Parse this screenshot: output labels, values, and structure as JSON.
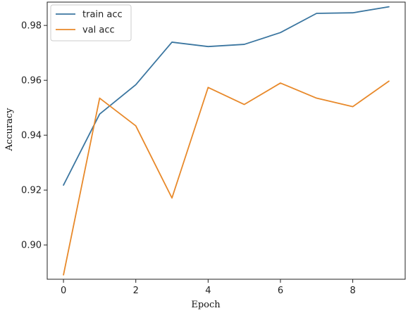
{
  "chart_data": {
    "type": "line",
    "title": "",
    "xlabel": "Epoch",
    "ylabel": "Accuracy",
    "x": [
      0,
      1,
      2,
      3,
      4,
      5,
      6,
      7,
      8,
      9
    ],
    "xticks": [
      "0",
      "2",
      "4",
      "6",
      "8"
    ],
    "yticks": [
      "0.90",
      "0.92",
      "0.94",
      "0.96",
      "0.98"
    ],
    "xlim": [
      -0.45,
      9.45
    ],
    "ylim": [
      0.8875,
      0.9885
    ],
    "grid": false,
    "legend_position": "top-left",
    "series": [
      {
        "name": "train acc",
        "color": "#3b76a0",
        "values": [
          0.9218,
          0.9477,
          0.9584,
          0.9739,
          0.9723,
          0.9731,
          0.9774,
          0.9844,
          0.9846,
          0.9868
        ]
      },
      {
        "name": "val acc",
        "color": "#e8892a",
        "values": [
          0.8891,
          0.9535,
          0.9434,
          0.9171,
          0.9574,
          0.9512,
          0.959,
          0.9535,
          0.9504,
          0.9597
        ]
      }
    ]
  }
}
